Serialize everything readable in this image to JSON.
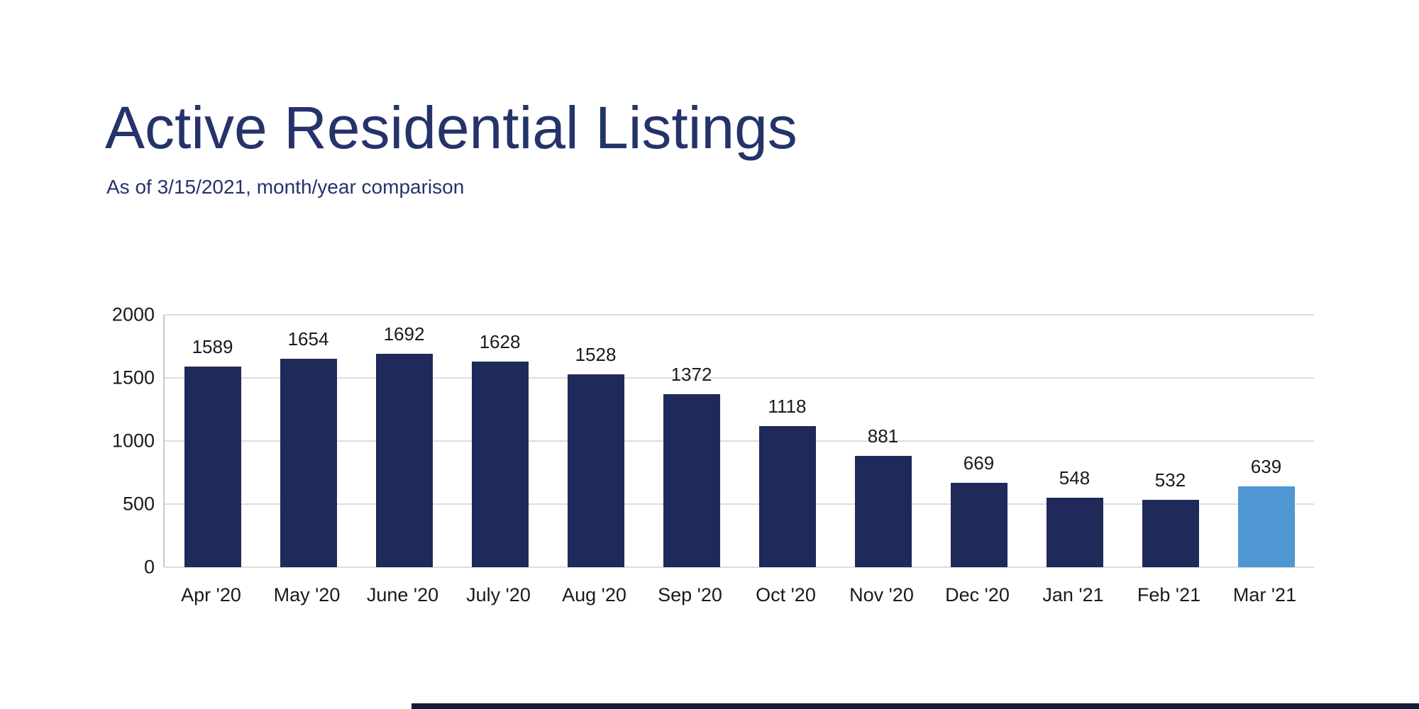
{
  "slide": {
    "title": "Active Residential Listings",
    "subtitle": "As of 3/15/2021, month/year comparison"
  },
  "colors": {
    "title": "#25336a",
    "bar_default": "#1f2a5a",
    "bar_highlight": "#4f97d2",
    "gridline": "#dddddd",
    "axis_text": "#1a1a1a",
    "footer_bar": "#161a38"
  },
  "chart_data": {
    "type": "bar",
    "title": "Active Residential Listings",
    "subtitle": "As of 3/15/2021, month/year comparison",
    "categories": [
      "Apr '20",
      "May '20",
      "June '20",
      "July '20",
      "Aug '20",
      "Sep '20",
      "Oct '20",
      "Nov '20",
      "Dec '20",
      "Jan '21",
      "Feb '21",
      "Mar '21"
    ],
    "values": [
      1589,
      1654,
      1692,
      1628,
      1528,
      1372,
      1118,
      881,
      669,
      548,
      532,
      639
    ],
    "highlight_index": 11,
    "xlabel": "",
    "ylabel": "",
    "ylim": [
      0,
      2000
    ],
    "yticks": [
      0,
      500,
      1000,
      1500,
      2000
    ],
    "grid": true,
    "data_labels": true,
    "legend": false
  }
}
